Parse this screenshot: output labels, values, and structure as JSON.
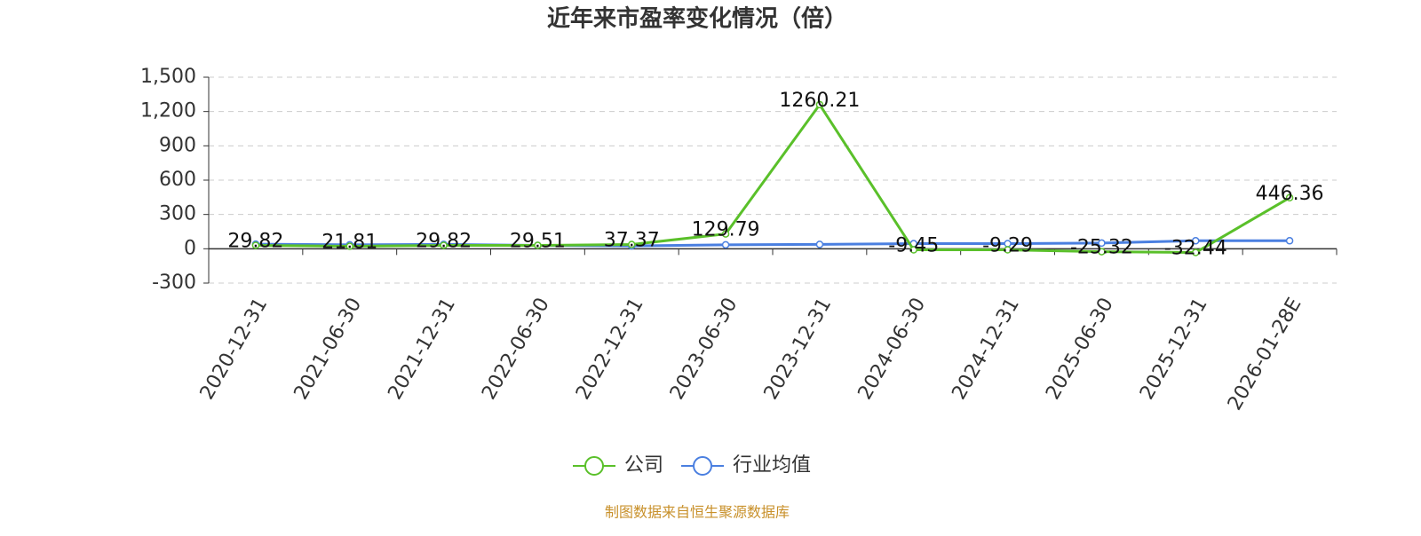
{
  "chart_data": {
    "type": "line",
    "title": "近年来市盈率变化情况（倍）",
    "categories": [
      "2020-12-31",
      "2021-06-30",
      "2021-12-31",
      "2022-06-30",
      "2022-12-31",
      "2023-06-30",
      "2023-12-31",
      "2024-06-30",
      "2024-12-31",
      "2025-06-30",
      "2025-12-31",
      "2026-01-28E"
    ],
    "series": [
      {
        "name": "公司",
        "color": "#5ac02a",
        "values": [
          29.82,
          21.81,
          29.82,
          29.51,
          37.37,
          129.79,
          1260.21,
          -9.45,
          -9.29,
          -25.32,
          -32.44,
          446.36
        ],
        "data_labels": true
      },
      {
        "name": "行业均值",
        "color": "#4a7fe0",
        "values": [
          40,
          35,
          38,
          30,
          25,
          35,
          38,
          45,
          45,
          50,
          70,
          70
        ],
        "data_labels": false
      }
    ],
    "ylim": [
      -300,
      1500
    ],
    "yticks": [
      -300,
      0,
      300,
      600,
      900,
      {
        "value": 1200,
        "label": "1,200"
      },
      {
        "value": 1500,
        "label": "1,500"
      }
    ],
    "grid": true,
    "legend": "bottom",
    "source": "制图数据来自恒生聚源数据库"
  }
}
